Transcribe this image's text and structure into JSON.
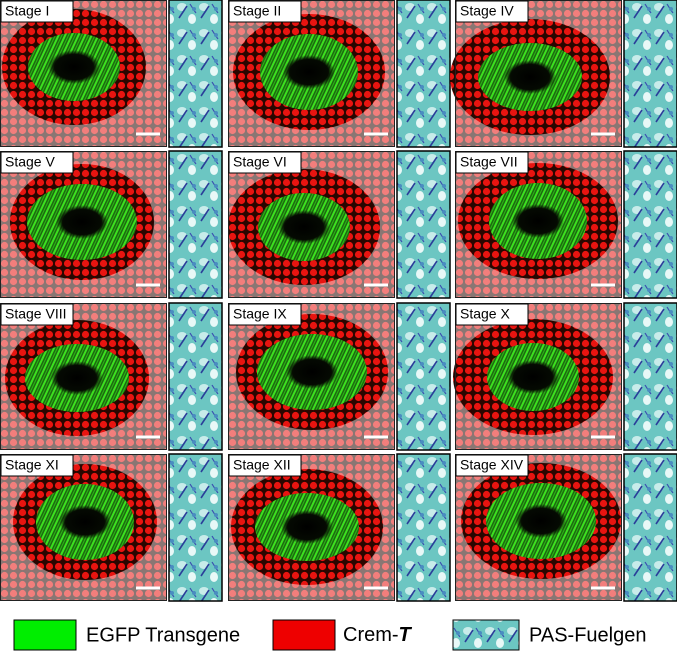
{
  "panels": [
    {
      "label": "Stage I"
    },
    {
      "label": "Stage II"
    },
    {
      "label": "Stage IV"
    },
    {
      "label": "Stage V"
    },
    {
      "label": "Stage VI"
    },
    {
      "label": "Stage VII"
    },
    {
      "label": "Stage VIII"
    },
    {
      "label": "Stage IX"
    },
    {
      "label": "Stage X"
    },
    {
      "label": "Stage XI"
    },
    {
      "label": "Stage XII"
    },
    {
      "label": "Stage XIV"
    }
  ],
  "legend": {
    "egfp": "EGFP Transgene",
    "crem": "Crem-",
    "crem_suffix": "T",
    "pas": "PAS-Fuelgen"
  }
}
